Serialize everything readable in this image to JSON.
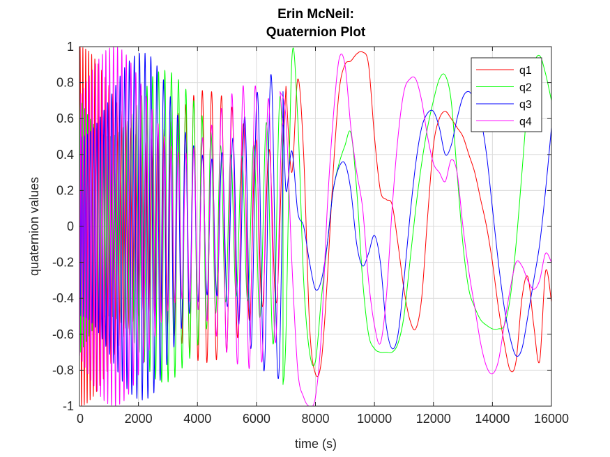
{
  "chart_data": {
    "type": "line",
    "title": [
      "Erin McNeil:",
      "Quaternion Plot"
    ],
    "xlabel": "time (s)",
    "ylabel": "quaternion values",
    "xlim": [
      0,
      16000
    ],
    "ylim": [
      -1,
      1
    ],
    "x_ticks": [
      "0",
      "2000",
      "4000",
      "6000",
      "8000",
      "10000",
      "12000",
      "14000",
      "16000"
    ],
    "y_ticks": [
      "-1",
      "-0.8",
      "-0.6",
      "-0.4",
      "-0.2",
      "0",
      "0.2",
      "0.4",
      "0.6",
      "0.8",
      "1"
    ],
    "grid": true,
    "legend_position": "top-right",
    "plot_order": [
      "q1",
      "q2",
      "q3",
      "q4"
    ],
    "legend_order": [
      "q1",
      "q2",
      "q3",
      "q4"
    ],
    "series": [
      {
        "name": "q1",
        "color": "#ff0000",
        "x": [
          7000,
          7200,
          7400,
          7600,
          7800,
          8000,
          8200,
          8400,
          8600,
          8800,
          9000,
          9200,
          9400,
          9600,
          9800,
          10000,
          10200,
          10400,
          10600,
          10800,
          11000,
          11200,
          11400,
          11600,
          11800,
          12000,
          12200,
          12400,
          12600,
          12800,
          13000,
          13200,
          13400,
          13600,
          13800,
          14000,
          14200,
          14400,
          14600,
          14800,
          15000,
          15200,
          15400,
          15600,
          15800,
          16000
        ],
        "y": [
          0.78,
          0.3,
          0.82,
          0.4,
          -0.55,
          -0.82,
          -0.75,
          -0.3,
          0.3,
          0.75,
          0.9,
          0.92,
          0.96,
          0.97,
          0.9,
          0.5,
          0.2,
          0.15,
          0.12,
          -0.1,
          -0.35,
          -0.52,
          -0.57,
          -0.4,
          0.05,
          0.45,
          0.6,
          0.64,
          0.6,
          0.55,
          0.5,
          0.4,
          0.3,
          0.15,
          0.0,
          -0.2,
          -0.45,
          -0.65,
          -0.8,
          -0.75,
          -0.4,
          -0.28,
          -0.55,
          -0.75,
          -0.25,
          -0.42
        ]
      },
      {
        "name": "q2",
        "color": "#00ff00",
        "x": [
          6900,
          7000,
          7200,
          7400,
          7600,
          7800,
          8000,
          8200,
          8400,
          8600,
          8800,
          9000,
          9200,
          9400,
          9600,
          9800,
          10000,
          10200,
          10400,
          10600,
          10800,
          11000,
          11200,
          11400,
          11600,
          11800,
          12000,
          12200,
          12400,
          12600,
          12800,
          13000,
          13200,
          13400,
          13600,
          13800,
          14000,
          14200,
          14400,
          14600,
          14800,
          15000,
          15200,
          15400,
          15600,
          15800,
          16000
        ],
        "y": [
          -0.88,
          -0.6,
          0.93,
          0.6,
          -0.3,
          -0.7,
          -0.75,
          -0.4,
          -0.1,
          0.2,
          0.35,
          0.45,
          0.52,
          0.2,
          -0.3,
          -0.6,
          -0.68,
          -0.7,
          -0.7,
          -0.7,
          -0.65,
          -0.5,
          -0.2,
          0.1,
          0.35,
          0.55,
          0.7,
          0.82,
          0.84,
          0.7,
          0.3,
          -0.1,
          -0.35,
          -0.45,
          -0.52,
          -0.55,
          -0.57,
          -0.57,
          -0.55,
          -0.4,
          -0.1,
          0.3,
          0.7,
          0.9,
          0.95,
          0.85,
          0.7
        ]
      },
      {
        "name": "q3",
        "color": "#0000ff",
        "x": [
          6900,
          7000,
          7200,
          7400,
          7600,
          7800,
          8000,
          8200,
          8400,
          8600,
          8800,
          9000,
          9200,
          9400,
          9600,
          9800,
          10000,
          10200,
          10400,
          10600,
          10800,
          11000,
          11200,
          11400,
          11600,
          11800,
          12000,
          12200,
          12400,
          12600,
          12800,
          13000,
          13200,
          13400,
          13600,
          13800,
          14000,
          14200,
          14400,
          14600,
          14800,
          15000,
          15200,
          15400,
          15600,
          15800,
          16000
        ],
        "y": [
          0.75,
          0.2,
          0.42,
          0.08,
          0.0,
          -0.2,
          -0.35,
          -0.3,
          -0.1,
          0.2,
          0.33,
          0.35,
          0.2,
          -0.1,
          -0.22,
          -0.15,
          -0.05,
          -0.2,
          -0.55,
          -0.68,
          -0.6,
          -0.3,
          0.05,
          0.35,
          0.55,
          0.63,
          0.64,
          0.55,
          0.4,
          0.45,
          0.6,
          0.72,
          0.75,
          0.7,
          0.6,
          0.4,
          0.1,
          -0.2,
          -0.45,
          -0.62,
          -0.72,
          -0.68,
          -0.5,
          -0.3,
          -0.1,
          0.2,
          0.55
        ]
      },
      {
        "name": "q4",
        "color": "#ff00ff",
        "x": [
          6800,
          7000,
          7200,
          7400,
          7600,
          7800,
          8000,
          8200,
          8400,
          8600,
          8800,
          9000,
          9200,
          9400,
          9600,
          9800,
          10000,
          10200,
          10400,
          10600,
          10800,
          11000,
          11200,
          11400,
          11600,
          11800,
          12000,
          12200,
          12400,
          12600,
          12800,
          13000,
          13200,
          13400,
          13600,
          13800,
          14000,
          14200,
          14400,
          14600,
          14800,
          15000,
          15200,
          15400,
          15600,
          15800,
          16000
        ],
        "y": [
          0.75,
          0.6,
          -0.2,
          -0.8,
          -0.95,
          -1.0,
          -0.95,
          -0.6,
          0.1,
          0.6,
          0.93,
          0.9,
          0.55,
          0.3,
          0.1,
          -0.3,
          -0.55,
          -0.65,
          -0.4,
          0.1,
          0.5,
          0.75,
          0.82,
          0.82,
          0.7,
          0.5,
          0.35,
          0.3,
          0.25,
          0.37,
          0.3,
          0.0,
          -0.25,
          -0.45,
          -0.65,
          -0.78,
          -0.82,
          -0.75,
          -0.55,
          -0.35,
          -0.2,
          -0.22,
          -0.3,
          -0.35,
          -0.3,
          -0.15,
          -0.2
        ]
      }
    ],
    "dense_region": {
      "x_range": [
        0,
        6900
      ],
      "amplitude_envelope": [
        [
          0,
          1.0
        ],
        [
          1500,
          1.0
        ],
        [
          2500,
          0.95
        ],
        [
          3500,
          0.8
        ],
        [
          4500,
          0.75
        ],
        [
          5500,
          0.78
        ],
        [
          6500,
          0.85
        ],
        [
          6900,
          0.85
        ]
      ],
      "note_values": "rapid oscillation of all four series between approximately -1 and 1"
    }
  }
}
